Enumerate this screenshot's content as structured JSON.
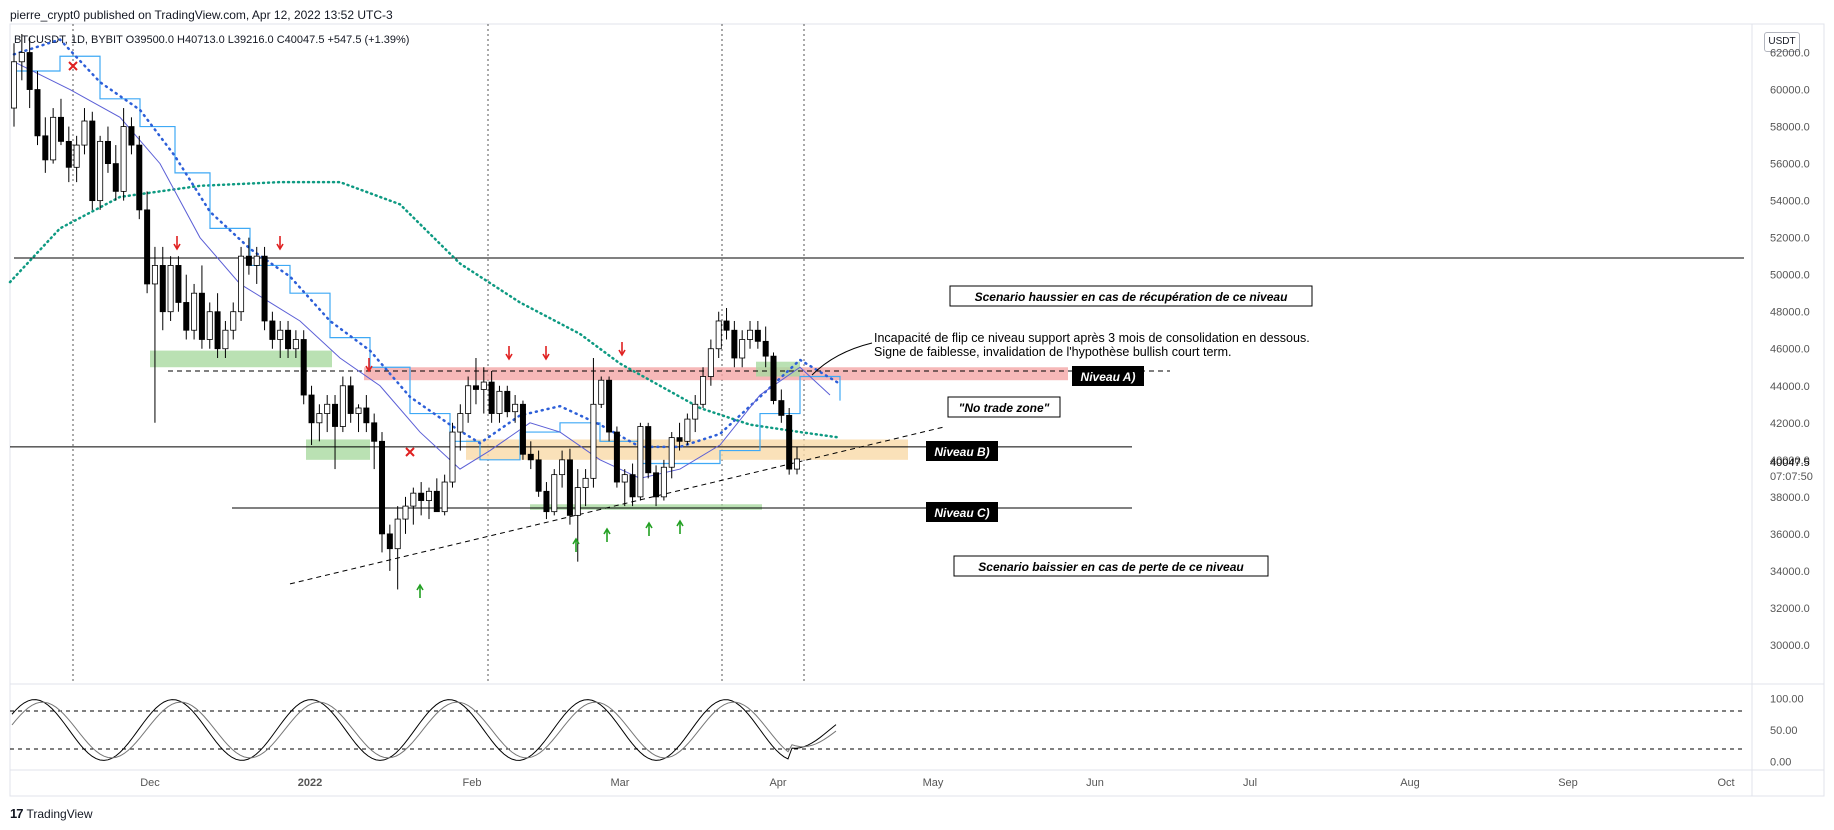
{
  "header": {
    "published_line": "pierre_crypt0 published on TradingView.com, Apr 12, 2022 13:52 UTC-3"
  },
  "legend": {
    "ohlc_line": "BTCUSDT, 1D, BYBIT  O39500.0  H40713.0  L39216.0  C40047.5  +547.5 (+1.39%)"
  },
  "footer": {
    "logo_mark": "17",
    "brand": "TradingView"
  },
  "price_axis": {
    "unit": "USDT",
    "last_price": "40047.5",
    "countdown": "07:07:50"
  },
  "annotations": {
    "bullish_scenario": "Scenario haussier en cas de récupération de ce niveau",
    "bearish_scenario": "Scenario baissier en cas de perte de ce niveau",
    "no_trade_zone": "\"No trade zone\"",
    "niveau_a": "Niveau A)",
    "niveau_b": "Niveau B)",
    "niveau_c": "Niveau C)",
    "comment_line1": "Incapacité de flip ce niveau support après 3 mois de consolidation en dessous.",
    "comment_line2": "Signe de faiblesse, invalidation de l'hypothèse bullish court term."
  },
  "colors": {
    "up": "#ffffff",
    "down": "#000000",
    "sma_dotted": "#0e9a82",
    "staircase": "#3fa9f5",
    "ema": "#5b5fd6",
    "resistance_zone": "#f4a6a6",
    "support_zone": "#a9d9a0",
    "no_trade_zone": "#f9d9a8",
    "arrow_down": "#e02020",
    "arrow_up": "#22a022"
  },
  "chart_data": [
    {
      "type": "candlestick",
      "symbol": "BTCUSDT",
      "timeframe": "1D",
      "exchange": "BYBIT",
      "ylim": [
        28000,
        63000
      ],
      "y_ticks": [
        62000,
        60000,
        58000,
        56000,
        54000,
        52000,
        50000,
        48000,
        46000,
        44000,
        42000,
        40000,
        38000,
        36000,
        34000,
        32000,
        30000
      ],
      "x_ticks": [
        "Dec",
        "2022",
        "Feb",
        "Mar",
        "Apr",
        "May",
        "Jun",
        "Jul",
        "Aug",
        "Sep",
        "Oct"
      ],
      "series": [
        {
          "values": [
            [
              59000,
              62500,
              58000,
              61500
            ],
            [
              61500,
              63000,
              60500,
              62000
            ],
            [
              62000,
              62800,
              59000,
              60000
            ],
            [
              60000,
              61000,
              57000,
              57500
            ],
            [
              57500,
              58500,
              55500,
              56200
            ],
            [
              56200,
              59000,
              56000,
              58500
            ],
            [
              58500,
              59500,
              57000,
              57200
            ],
            [
              57200,
              58000,
              55000,
              55800
            ],
            [
              55800,
              57500,
              55000,
              57000
            ],
            [
              57000,
              59000,
              56500,
              58300
            ],
            [
              58300,
              58800,
              53500,
              54000
            ],
            [
              54000,
              57500,
              53500,
              57200
            ],
            [
              57200,
              58000,
              55500,
              56000
            ],
            [
              56000,
              57000,
              54000,
              54500
            ],
            [
              54500,
              59000,
              54000,
              58000
            ],
            [
              58000,
              58500,
              56500,
              57000
            ],
            [
              57000,
              57500,
              53000,
              53500
            ],
            [
              53500,
              54500,
              49000,
              49500
            ],
            [
              49500,
              51500,
              42000,
              50500
            ],
            [
              50500,
              51500,
              47000,
              48000
            ],
            [
              48000,
              51000,
              47500,
              50500
            ],
            [
              50500,
              51000,
              48000,
              48500
            ],
            [
              48500,
              50000,
              46500,
              47000
            ],
            [
              47000,
              49500,
              46500,
              49000
            ],
            [
              49000,
              50500,
              46000,
              46500
            ],
            [
              46500,
              48500,
              46000,
              48000
            ],
            [
              48000,
              49000,
              45500,
              46000
            ],
            [
              46000,
              47500,
              45500,
              47000
            ],
            [
              47000,
              48500,
              46500,
              48000
            ],
            [
              48000,
              51500,
              47500,
              51000
            ],
            [
              51000,
              52000,
              50000,
              50500
            ],
            [
              50500,
              51500,
              49500,
              51000
            ],
            [
              51000,
              51500,
              47000,
              47500
            ],
            [
              47500,
              48000,
              46000,
              46500
            ],
            [
              46500,
              47500,
              45500,
              47000
            ],
            [
              47000,
              47500,
              45500,
              46000
            ],
            [
              46000,
              47000,
              45500,
              46500
            ],
            [
              46500,
              47000,
              43000,
              43500
            ],
            [
              43500,
              44000,
              40800,
              42000
            ],
            [
              42000,
              43000,
              41000,
              42500
            ],
            [
              42500,
              43500,
              41500,
              43000
            ],
            [
              43000,
              43500,
              39500,
              41800
            ],
            [
              41800,
              44500,
              41500,
              44000
            ],
            [
              44000,
              44500,
              42000,
              42500
            ],
            [
              42500,
              43000,
              41500,
              42800
            ],
            [
              42800,
              43500,
              41500,
              42000
            ],
            [
              42000,
              42500,
              39500,
              41000
            ],
            [
              41000,
              41500,
              35000,
              36000
            ],
            [
              36000,
              36500,
              34000,
              35200
            ],
            [
              35200,
              37500,
              33000,
              36800
            ],
            [
              36800,
              38000,
              36000,
              37500
            ],
            [
              37500,
              38500,
              36500,
              38200
            ],
            [
              38200,
              38800,
              37000,
              37800
            ],
            [
              37800,
              38500,
              36800,
              38300
            ],
            [
              38300,
              39000,
              37500,
              37200
            ],
            [
              37200,
              39200,
              37000,
              38800
            ],
            [
              38800,
              42000,
              38500,
              41500
            ],
            [
              41500,
              43000,
              40500,
              42500
            ],
            [
              42500,
              44500,
              42000,
              44000
            ],
            [
              44000,
              45500,
              43000,
              43800
            ],
            [
              43800,
              45000,
              42500,
              44200
            ],
            [
              44200,
              44800,
              42000,
              42500
            ],
            [
              42500,
              44000,
              42000,
              43700
            ],
            [
              43700,
              44000,
              42300,
              42600
            ],
            [
              42600,
              43500,
              42000,
              43000
            ],
            [
              43000,
              43200,
              40000,
              40300
            ],
            [
              40300,
              41000,
              39500,
              40000
            ],
            [
              40000,
              40500,
              38000,
              38300
            ],
            [
              38300,
              38800,
              36800,
              37200
            ],
            [
              37200,
              39500,
              37000,
              39200
            ],
            [
              39200,
              40500,
              38500,
              40000
            ],
            [
              40000,
              40600,
              36500,
              37000
            ],
            [
              37000,
              39500,
              34500,
              38500
            ],
            [
              38500,
              39500,
              37500,
              39000
            ],
            [
              39000,
              45500,
              38500,
              43000
            ],
            [
              43000,
              44500,
              42800,
              44300
            ],
            [
              44300,
              44500,
              41000,
              41500
            ],
            [
              41500,
              41800,
              38500,
              38800
            ],
            [
              38800,
              39500,
              37500,
              39200
            ],
            [
              39200,
              39800,
              37500,
              38000
            ],
            [
              38000,
              42000,
              37800,
              41800
            ],
            [
              41800,
              42000,
              39000,
              39300
            ],
            [
              39300,
              39700,
              37500,
              38000
            ],
            [
              38000,
              40000,
              37800,
              39600
            ],
            [
              39600,
              41500,
              39000,
              41200
            ],
            [
              41200,
              42000,
              40500,
              41000
            ],
            [
              41000,
              42500,
              40800,
              42200
            ],
            [
              42200,
              43500,
              41500,
              43000
            ],
            [
              43000,
              45000,
              42800,
              44500
            ],
            [
              44500,
              46500,
              44000,
              46000
            ],
            [
              46000,
              48000,
              45500,
              47500
            ],
            [
              47500,
              48200,
              46500,
              47000
            ],
            [
              47000,
              47500,
              45000,
              45500
            ],
            [
              45500,
              47000,
              45000,
              46500
            ],
            [
              46500,
              47500,
              46000,
              47000
            ],
            [
              47000,
              47500,
              46000,
              46400
            ],
            [
              46400,
              47200,
              45000,
              45600
            ],
            [
              45600,
              45800,
              43000,
              43200
            ],
            [
              43200,
              43800,
              42000,
              42400
            ],
            [
              42400,
              42800,
              39200,
              39500
            ],
            [
              39500,
              40713,
              39216,
              40047.5
            ]
          ]
        }
      ]
    },
    {
      "type": "line",
      "ylim": [
        -10,
        110
      ],
      "y_ticks": [
        100,
        50,
        0
      ],
      "y_tick_labels": [
        "100.00",
        "50.00",
        "0.00"
      ],
      "reference_lines": [
        80,
        20
      ]
    }
  ]
}
